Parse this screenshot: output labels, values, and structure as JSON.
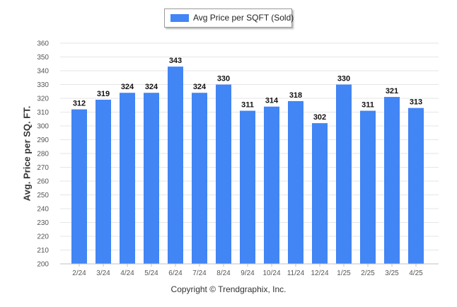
{
  "chart_data": {
    "type": "bar",
    "title": "",
    "xlabel": "",
    "ylabel": "Avg. Price per SQ. FT.",
    "ylim": [
      200,
      360
    ],
    "ytick_step": 10,
    "grid": true,
    "legend_position": "top-center",
    "categories": [
      "2/24",
      "3/24",
      "4/24",
      "5/24",
      "6/24",
      "7/24",
      "8/24",
      "9/24",
      "10/24",
      "11/24",
      "12/24",
      "1/25",
      "2/25",
      "3/25",
      "4/25"
    ],
    "series": [
      {
        "name": "Avg Price per SQFT (Sold)",
        "color": "#4285f4",
        "values": [
          312,
          319,
          324,
          324,
          343,
          324,
          330,
          311,
          314,
          318,
          302,
          330,
          311,
          321,
          313
        ]
      }
    ]
  },
  "footer": {
    "copyright": "Copyright © Trendgraphix, Inc."
  }
}
